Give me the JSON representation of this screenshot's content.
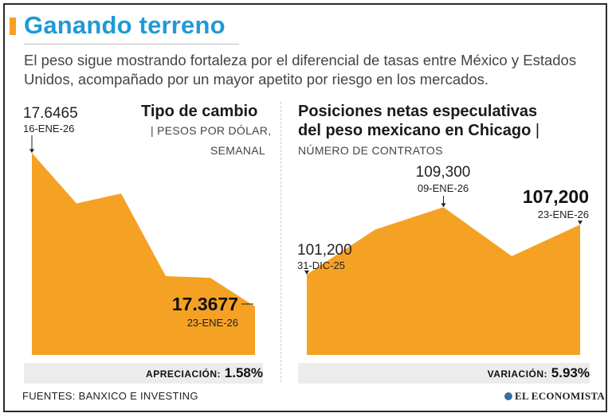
{
  "header": {
    "title": "Ganando terreno",
    "subtitle": "El peso sigue mostrando fortaleza por el diferencial de tasas entre México y Estados Unidos, acompañado por un mayor apetito por riesgo en los mercados."
  },
  "colors": {
    "accent": "#f5a124",
    "title": "#1f9ad6",
    "area": "#f5a124"
  },
  "chart_data": [
    {
      "type": "area",
      "title": "Tipo de cambio",
      "unit_line1": "| PESOS POR DÓLAR,",
      "unit_line2": "SEMANAL",
      "y": [
        17.6465,
        17.555,
        17.573,
        17.423,
        17.42,
        17.3677
      ],
      "ylim": [
        17.28,
        17.67
      ],
      "start_value": "17.6465",
      "start_date": "16-ENE-26",
      "end_value": "17.3677",
      "end_date": "23-ENE-26",
      "summary_key": "APRECIACIÓN:",
      "summary_value": "1.58%"
    },
    {
      "type": "area",
      "title_line1": "Posiciones netas especulativas",
      "title_line2": "del peso mexicano en Chicago",
      "unit_line1": "NÚMERO DE CONTRATOS",
      "y": [
        101200,
        106600,
        109300,
        103400,
        107200
      ],
      "ylim": [
        91500,
        110200
      ],
      "start_value": "101,200",
      "start_date": "31-DIC-25",
      "peak_value": "109,300",
      "peak_date": "09-ENE-26",
      "end_value": "107,200",
      "end_date": "23-ENE-26",
      "summary_key": "VARIACIÓN:",
      "summary_value": "5.93%"
    }
  ],
  "footer": {
    "sources": "FUENTES: BANXICO E INVESTING",
    "brand": "EL ECONOMISTA"
  }
}
